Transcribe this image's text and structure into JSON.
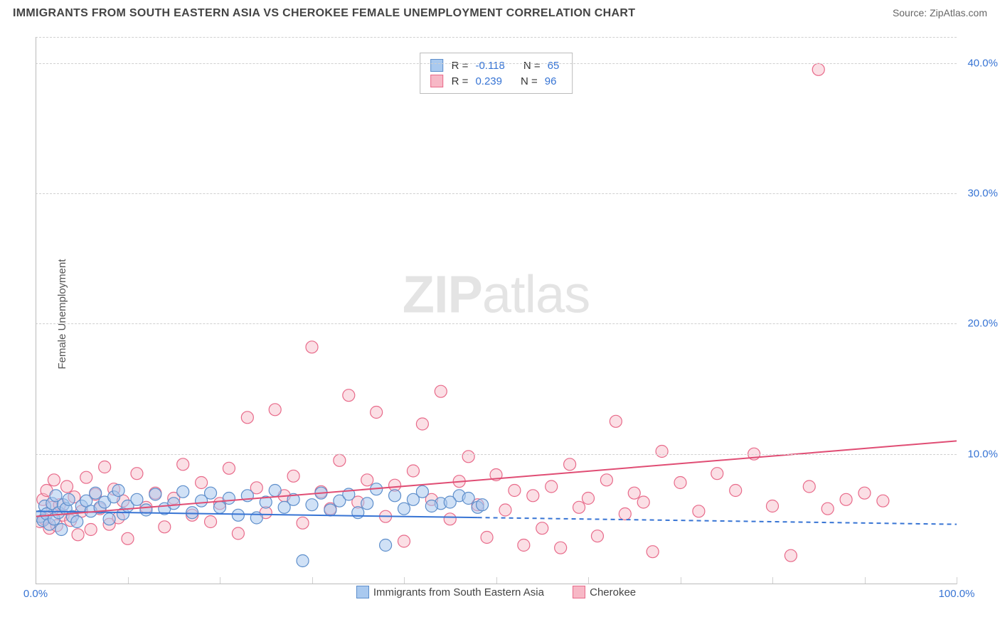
{
  "header": {
    "title": "IMMIGRANTS FROM SOUTH EASTERN ASIA VS CHEROKEE FEMALE UNEMPLOYMENT CORRELATION CHART",
    "source": "Source: ZipAtlas.com"
  },
  "ylabel": "Female Unemployment",
  "watermark": {
    "bold": "ZIP",
    "light": "atlas"
  },
  "series": {
    "a": {
      "name": "Immigrants from South Eastern Asia",
      "fill": "#a9c9ef",
      "fill_opacity": 0.55,
      "stroke": "#5d8ecb",
      "line_color": "#3774d4",
      "r_label": "R =",
      "r_value": "-0.118",
      "n_label": "N =",
      "n_value": "65",
      "trend": {
        "y_at_x0": 5.6,
        "y_at_x100": 4.6,
        "solid_until_x": 48
      },
      "points": [
        [
          0.5,
          5.2
        ],
        [
          0.8,
          4.9
        ],
        [
          1.0,
          6.0
        ],
        [
          1.2,
          5.4
        ],
        [
          1.5,
          4.6
        ],
        [
          1.8,
          6.2
        ],
        [
          2.0,
          5.0
        ],
        [
          2.2,
          6.8
        ],
        [
          2.5,
          5.5
        ],
        [
          2.8,
          4.2
        ],
        [
          3.0,
          6.1
        ],
        [
          3.3,
          5.8
        ],
        [
          3.6,
          6.5
        ],
        [
          4.0,
          5.2
        ],
        [
          4.5,
          4.8
        ],
        [
          5.0,
          6.0
        ],
        [
          5.5,
          6.4
        ],
        [
          6.0,
          5.6
        ],
        [
          6.5,
          7.0
        ],
        [
          7.0,
          5.9
        ],
        [
          7.5,
          6.3
        ],
        [
          8.0,
          5.0
        ],
        [
          8.5,
          6.7
        ],
        [
          9.0,
          7.2
        ],
        [
          9.5,
          5.4
        ],
        [
          10.0,
          6.0
        ],
        [
          11.0,
          6.5
        ],
        [
          12.0,
          5.7
        ],
        [
          13.0,
          6.9
        ],
        [
          14.0,
          5.8
        ],
        [
          15.0,
          6.2
        ],
        [
          16.0,
          7.1
        ],
        [
          17.0,
          5.5
        ],
        [
          18.0,
          6.4
        ],
        [
          19.0,
          7.0
        ],
        [
          20.0,
          5.9
        ],
        [
          21.0,
          6.6
        ],
        [
          22.0,
          5.3
        ],
        [
          23.0,
          6.8
        ],
        [
          24.0,
          5.1
        ],
        [
          25.0,
          6.3
        ],
        [
          26.0,
          7.2
        ],
        [
          27.0,
          5.9
        ],
        [
          28.0,
          6.5
        ],
        [
          29.0,
          1.8
        ],
        [
          30.0,
          6.1
        ],
        [
          31.0,
          7.0
        ],
        [
          32.0,
          5.7
        ],
        [
          33.0,
          6.4
        ],
        [
          34.0,
          6.9
        ],
        [
          35.0,
          5.5
        ],
        [
          36.0,
          6.2
        ],
        [
          37.0,
          7.3
        ],
        [
          38.0,
          3.0
        ],
        [
          39.0,
          6.8
        ],
        [
          40.0,
          5.8
        ],
        [
          41.0,
          6.5
        ],
        [
          42.0,
          7.1
        ],
        [
          44.0,
          6.2
        ],
        [
          46.0,
          6.8
        ],
        [
          48.0,
          5.9
        ],
        [
          45.0,
          6.3
        ],
        [
          43.0,
          6.0
        ],
        [
          47.0,
          6.6
        ],
        [
          48.5,
          6.1
        ]
      ]
    },
    "b": {
      "name": "Cherokee",
      "fill": "#f7b8c6",
      "fill_opacity": 0.45,
      "stroke": "#e86a8a",
      "line_color": "#e04d74",
      "r_label": "R =",
      "r_value": "0.239",
      "n_label": "N =",
      "n_value": "96",
      "trend": {
        "y_at_x0": 5.2,
        "y_at_x100": 11.0,
        "solid_until_x": 100
      },
      "points": [
        [
          0.5,
          4.8
        ],
        [
          0.8,
          6.5
        ],
        [
          1.0,
          5.0
        ],
        [
          1.2,
          7.2
        ],
        [
          1.5,
          4.3
        ],
        [
          1.8,
          5.9
        ],
        [
          2.0,
          8.0
        ],
        [
          2.3,
          4.5
        ],
        [
          2.6,
          6.1
        ],
        [
          3.0,
          5.3
        ],
        [
          3.4,
          7.5
        ],
        [
          3.8,
          4.9
        ],
        [
          4.2,
          6.7
        ],
        [
          4.6,
          3.8
        ],
        [
          5.0,
          5.6
        ],
        [
          5.5,
          8.2
        ],
        [
          6.0,
          4.2
        ],
        [
          6.5,
          6.9
        ],
        [
          7.0,
          5.8
        ],
        [
          7.5,
          9.0
        ],
        [
          8.0,
          4.6
        ],
        [
          8.5,
          7.3
        ],
        [
          9.0,
          5.1
        ],
        [
          9.5,
          6.4
        ],
        [
          10.0,
          3.5
        ],
        [
          11.0,
          8.5
        ],
        [
          12.0,
          5.9
        ],
        [
          13.0,
          7.0
        ],
        [
          14.0,
          4.4
        ],
        [
          15.0,
          6.6
        ],
        [
          16.0,
          9.2
        ],
        [
          17.0,
          5.3
        ],
        [
          18.0,
          7.8
        ],
        [
          19.0,
          4.8
        ],
        [
          20.0,
          6.2
        ],
        [
          21.0,
          8.9
        ],
        [
          22.0,
          3.9
        ],
        [
          23.0,
          12.8
        ],
        [
          24.0,
          7.4
        ],
        [
          25.0,
          5.5
        ],
        [
          26.0,
          13.4
        ],
        [
          27.0,
          6.8
        ],
        [
          28.0,
          8.3
        ],
        [
          29.0,
          4.7
        ],
        [
          30.0,
          18.2
        ],
        [
          31.0,
          7.1
        ],
        [
          32.0,
          5.8
        ],
        [
          33.0,
          9.5
        ],
        [
          34.0,
          14.5
        ],
        [
          35.0,
          6.3
        ],
        [
          36.0,
          8.0
        ],
        [
          37.0,
          13.2
        ],
        [
          38.0,
          5.2
        ],
        [
          39.0,
          7.6
        ],
        [
          40.0,
          3.3
        ],
        [
          41.0,
          8.7
        ],
        [
          42.0,
          12.3
        ],
        [
          43.0,
          6.5
        ],
        [
          44.0,
          14.8
        ],
        [
          45.0,
          5.0
        ],
        [
          46.0,
          7.9
        ],
        [
          47.0,
          9.8
        ],
        [
          48.0,
          6.1
        ],
        [
          49.0,
          3.6
        ],
        [
          50.0,
          8.4
        ],
        [
          51.0,
          5.7
        ],
        [
          52.0,
          7.2
        ],
        [
          53.0,
          3.0
        ],
        [
          54.0,
          6.8
        ],
        [
          55.0,
          4.3
        ],
        [
          56.0,
          7.5
        ],
        [
          57.0,
          2.8
        ],
        [
          58.0,
          9.2
        ],
        [
          59.0,
          5.9
        ],
        [
          60.0,
          6.6
        ],
        [
          61.0,
          3.7
        ],
        [
          62.0,
          8.0
        ],
        [
          63.0,
          12.5
        ],
        [
          64.0,
          5.4
        ],
        [
          65.0,
          7.0
        ],
        [
          66.0,
          6.3
        ],
        [
          67.0,
          2.5
        ],
        [
          68.0,
          10.2
        ],
        [
          70.0,
          7.8
        ],
        [
          72.0,
          5.6
        ],
        [
          74.0,
          8.5
        ],
        [
          76.0,
          7.2
        ],
        [
          78.0,
          10.0
        ],
        [
          80.0,
          6.0
        ],
        [
          82.0,
          2.2
        ],
        [
          84.0,
          7.5
        ],
        [
          86.0,
          5.8
        ],
        [
          88.0,
          6.5
        ],
        [
          85.0,
          39.5
        ],
        [
          90.0,
          7.0
        ],
        [
          92.0,
          6.4
        ]
      ]
    }
  },
  "axes": {
    "x": {
      "min": 0,
      "max": 100,
      "ticks": [
        0,
        10,
        20,
        30,
        40,
        50,
        60,
        70,
        80,
        90,
        100
      ],
      "labels": {
        "0": "0.0%",
        "100": "100.0%"
      },
      "label_color": "#3774d4"
    },
    "y": {
      "min": 0,
      "max": 42,
      "grid": [
        10,
        20,
        30,
        40
      ],
      "labels": {
        "10": "10.0%",
        "20": "20.0%",
        "30": "30.0%",
        "40": "40.0%"
      },
      "label_color": "#3774d4"
    }
  },
  "style": {
    "marker_radius": 8.5,
    "grid_color": "#d0d0d0",
    "trend_width": 2.0,
    "trend_dash": "6 5"
  }
}
